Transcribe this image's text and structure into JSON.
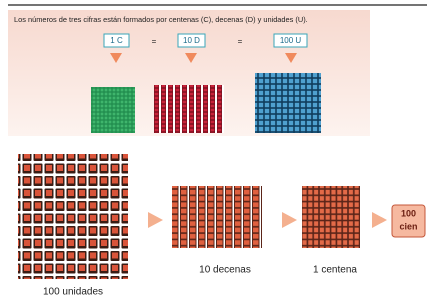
{
  "header": {
    "text": "Los números de tres cifras están formados por centenas (C), decenas (D) y unidades (U)."
  },
  "equation": {
    "items": [
      "1 C",
      "=",
      "10 D",
      "=",
      "100 U"
    ]
  },
  "labels": {
    "units": "100 unidades",
    "tens": "10 decenas",
    "hundred": "1 centena"
  },
  "result": {
    "number": "100",
    "word": "cien"
  }
}
